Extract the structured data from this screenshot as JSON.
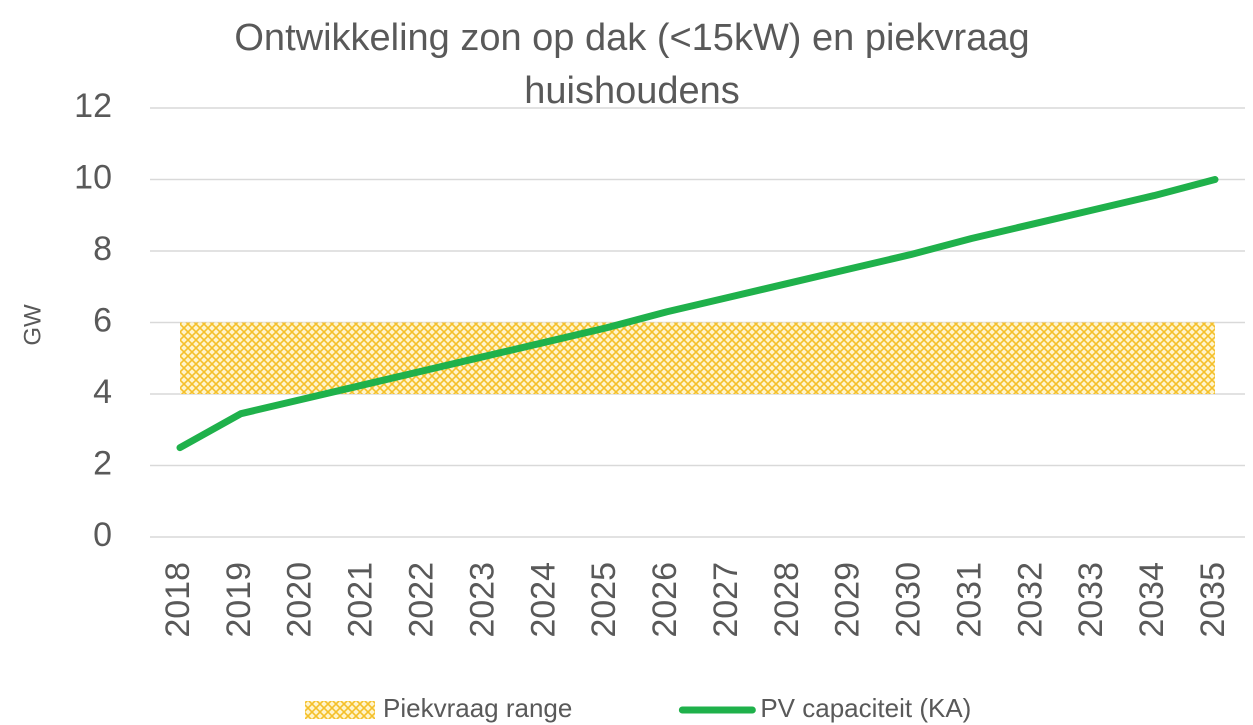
{
  "chart_data": {
    "type": "line",
    "title": [
      "Ontwikkeling zon op dak (<15kW) en piekvraag",
      "huishoudens"
    ],
    "ylabel": "GW",
    "categories": [
      "2018",
      "2019",
      "2020",
      "2021",
      "2022",
      "2023",
      "2024",
      "2025",
      "2026",
      "2027",
      "2028",
      "2029",
      "2030",
      "2031",
      "2032",
      "2033",
      "2034",
      "2035"
    ],
    "series": [
      {
        "name": "Piekvraag range",
        "type": "band",
        "color": "#f5c02a",
        "low": [
          4,
          4,
          4,
          4,
          4,
          4,
          4,
          4,
          4,
          4,
          4,
          4,
          4,
          4,
          4,
          4,
          4,
          4
        ],
        "high": [
          6,
          6,
          6,
          6,
          6,
          6,
          6,
          6,
          6,
          6,
          6,
          6,
          6,
          6,
          6,
          6,
          6,
          6
        ]
      },
      {
        "name": "PV capaciteit (KA)",
        "type": "line",
        "color": "#1fb14b",
        "values": [
          2.5,
          3.45,
          3.85,
          4.25,
          4.65,
          5.05,
          5.45,
          5.85,
          6.3,
          6.7,
          7.1,
          7.5,
          7.9,
          8.35,
          8.75,
          9.15,
          9.55,
          10.0
        ]
      }
    ],
    "ylim": [
      0,
      12
    ],
    "yticks": [
      0,
      2,
      4,
      6,
      8,
      10,
      12
    ],
    "grid": true,
    "legend": "bottom"
  }
}
